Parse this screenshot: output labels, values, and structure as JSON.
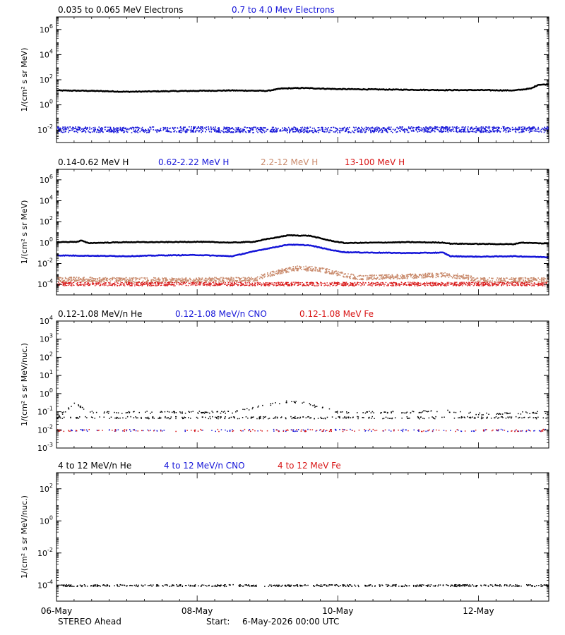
{
  "chart_data": [
    {
      "type": "scatter",
      "y_scale": "log",
      "ylim": [
        0.001,
        10000000
      ],
      "ylabel": "1/(cm² s sr MeV)",
      "y_ticks": [
        {
          "value": 1000000,
          "base": "10",
          "exp": "6"
        },
        {
          "value": 10000,
          "base": "10",
          "exp": "4"
        },
        {
          "value": 100,
          "base": "10",
          "exp": "2"
        },
        {
          "value": 1,
          "base": "10",
          "exp": "0"
        },
        {
          "value": 0.01,
          "base": "10",
          "exp": "-2"
        }
      ],
      "series": [
        {
          "name": "0.035 to 0.065 MeV Electrons",
          "color": "#000000",
          "style": "dense",
          "values": [
            [
              0,
              14
            ],
            [
              0.5,
              13
            ],
            [
              1,
              11
            ],
            [
              1.5,
              12
            ],
            [
              2,
              13
            ],
            [
              2.5,
              14
            ],
            [
              3,
              13
            ],
            [
              3.2,
              20
            ],
            [
              3.5,
              22
            ],
            [
              4,
              18
            ],
            [
              4.5,
              17
            ],
            [
              5,
              16
            ],
            [
              5.5,
              15
            ],
            [
              6,
              15
            ],
            [
              6.5,
              14
            ],
            [
              6.75,
              20
            ],
            [
              6.85,
              40
            ],
            [
              7,
              42
            ]
          ]
        },
        {
          "name": "0.7 to 4.0 Mev Electrons",
          "color": "#1515d8",
          "style": "noisy",
          "values": [
            [
              0,
              0.012
            ],
            [
              1,
              0.011
            ],
            [
              2,
              0.012
            ],
            [
              3,
              0.011
            ],
            [
              4,
              0.011
            ],
            [
              5,
              0.012
            ],
            [
              6,
              0.012
            ],
            [
              7,
              0.012
            ]
          ]
        }
      ]
    },
    {
      "type": "scatter",
      "y_scale": "log",
      "ylim": [
        1e-05,
        10000000
      ],
      "ylabel": "1/(cm² s sr MeV)",
      "y_ticks": [
        {
          "value": 1000000,
          "base": "10",
          "exp": "6"
        },
        {
          "value": 10000,
          "base": "10",
          "exp": "4"
        },
        {
          "value": 100,
          "base": "10",
          "exp": "2"
        },
        {
          "value": 1,
          "base": "10",
          "exp": "0"
        },
        {
          "value": 0.01,
          "base": "10",
          "exp": "-2"
        },
        {
          "value": 0.0001,
          "base": "10",
          "exp": "-4"
        }
      ],
      "series": [
        {
          "name": "0.14-0.62 MeV H",
          "color": "#000000",
          "style": "dense",
          "values": [
            [
              0,
              1.1
            ],
            [
              0.3,
              1.2
            ],
            [
              0.35,
              1.6
            ],
            [
              0.45,
              0.9
            ],
            [
              1,
              1.1
            ],
            [
              1.5,
              1.1
            ],
            [
              2,
              1.2
            ],
            [
              2.5,
              1.0
            ],
            [
              2.8,
              1.2
            ],
            [
              3.0,
              2.2
            ],
            [
              3.3,
              5
            ],
            [
              3.6,
              4.5
            ],
            [
              3.9,
              1.5
            ],
            [
              4.1,
              0.9
            ],
            [
              5,
              1.1
            ],
            [
              5.5,
              1.0
            ],
            [
              5.6,
              0.8
            ],
            [
              6,
              0.75
            ],
            [
              6.5,
              0.7
            ],
            [
              6.6,
              1.0
            ],
            [
              7,
              0.8
            ]
          ]
        },
        {
          "name": "0.62-2.22 MeV H",
          "color": "#1515d8",
          "style": "dense",
          "values": [
            [
              0,
              0.06
            ],
            [
              0.5,
              0.055
            ],
            [
              1,
              0.05
            ],
            [
              1.5,
              0.06
            ],
            [
              2,
              0.065
            ],
            [
              2.5,
              0.05
            ],
            [
              2.9,
              0.2
            ],
            [
              3.3,
              0.65
            ],
            [
              3.6,
              0.55
            ],
            [
              3.9,
              0.2
            ],
            [
              4.1,
              0.12
            ],
            [
              5,
              0.1
            ],
            [
              5.5,
              0.11
            ],
            [
              5.6,
              0.05
            ],
            [
              6,
              0.045
            ],
            [
              6.5,
              0.05
            ],
            [
              7,
              0.04
            ]
          ]
        },
        {
          "name": "2.2-12 MeV H",
          "color": "#c98a6c",
          "style": "noisy",
          "values": [
            [
              0,
              0.00035
            ],
            [
              1,
              0.0003
            ],
            [
              2,
              0.0003
            ],
            [
              2.8,
              0.00035
            ],
            [
              3.1,
              0.0015
            ],
            [
              3.4,
              0.004
            ],
            [
              3.7,
              0.0035
            ],
            [
              4.0,
              0.0012
            ],
            [
              4.3,
              0.0005
            ],
            [
              5,
              0.0007
            ],
            [
              5.5,
              0.0009
            ],
            [
              5.8,
              0.0006
            ],
            [
              6,
              0.0003
            ],
            [
              7,
              0.0003
            ]
          ]
        },
        {
          "name": "13-100 MeV H",
          "color": "#d81515",
          "style": "band",
          "values": [
            [
              0,
              0.00012
            ],
            [
              7,
              0.00012
            ]
          ]
        }
      ]
    },
    {
      "type": "scatter",
      "y_scale": "log",
      "ylim": [
        0.001,
        10000
      ],
      "ylabel": "1/(cm² s sr MeV/nuc.)",
      "y_ticks": [
        {
          "value": 10000,
          "base": "10",
          "exp": "4"
        },
        {
          "value": 1000,
          "base": "10",
          "exp": "3"
        },
        {
          "value": 100,
          "base": "10",
          "exp": "2"
        },
        {
          "value": 10,
          "base": "10",
          "exp": "1"
        },
        {
          "value": 1,
          "base": "10",
          "exp": "0"
        },
        {
          "value": 0.1,
          "base": "10",
          "exp": "-1"
        },
        {
          "value": 0.01,
          "base": "10",
          "exp": "-2"
        },
        {
          "value": 0.001,
          "base": "10",
          "exp": "-3"
        }
      ],
      "series": [
        {
          "name": "0.12-1.08 MeV/n He",
          "color": "#000000",
          "style": "sparse",
          "values": [
            [
              0,
              0.05
            ],
            [
              0.15,
              0.15
            ],
            [
              0.25,
              0.3
            ],
            [
              0.5,
              0.1
            ],
            [
              1.5,
              0.1
            ],
            [
              2,
              0.1
            ],
            [
              2.5,
              0.1
            ],
            [
              3.1,
              0.3
            ],
            [
              3.3,
              0.4
            ],
            [
              3.5,
              0.35
            ],
            [
              3.7,
              0.2
            ],
            [
              4,
              0.1
            ],
            [
              5,
              0.1
            ],
            [
              5.5,
              0.12
            ],
            [
              6,
              0.08
            ],
            [
              7,
              0.1
            ]
          ]
        },
        {
          "name": "0.12-1.08 MeV/n CNO",
          "color": "#1515d8",
          "style": "sparse",
          "values": [
            [
              0,
              0.01
            ],
            [
              7,
              0.01
            ]
          ]
        },
        {
          "name": "0.12-1.08 MeV Fe",
          "color": "#d81515",
          "style": "sparse",
          "values": [
            [
              0,
              0.01
            ],
            [
              7,
              0.01
            ]
          ]
        }
      ]
    },
    {
      "type": "scatter",
      "y_scale": "log",
      "ylim": [
        1e-05,
        1000
      ],
      "ylabel": "1/(cm² s sr MeV/nuc.)",
      "y_ticks": [
        {
          "value": 100,
          "base": "10",
          "exp": "2"
        },
        {
          "value": 1,
          "base": "10",
          "exp": "0"
        },
        {
          "value": 0.01,
          "base": "10",
          "exp": "-2"
        },
        {
          "value": 0.0001,
          "base": "10",
          "exp": "-4"
        }
      ],
      "series": [
        {
          "name": "4 to 12 MeV/n He",
          "color": "#000000",
          "style": "sparse",
          "values": [
            [
              0,
              0.0001
            ],
            [
              7,
              0.0001
            ]
          ]
        },
        {
          "name": "4 to 12 MeV/n CNO",
          "color": "#1515d8",
          "style": "none",
          "values": []
        },
        {
          "name": "4 to 12 MeV Fe",
          "color": "#d81515",
          "style": "none",
          "values": []
        }
      ]
    }
  ],
  "x_axis": {
    "range_days": [
      0,
      7
    ],
    "tick_labels": [
      {
        "label": "06-May",
        "day": 0
      },
      {
        "label": "08-May",
        "day": 2
      },
      {
        "label": "10-May",
        "day": 4
      },
      {
        "label": "12-May",
        "day": 6
      }
    ]
  },
  "footer": {
    "spacecraft": "STEREO Ahead",
    "start_label": "Start:",
    "start_value": "6-May-2026 00:00 UTC"
  }
}
